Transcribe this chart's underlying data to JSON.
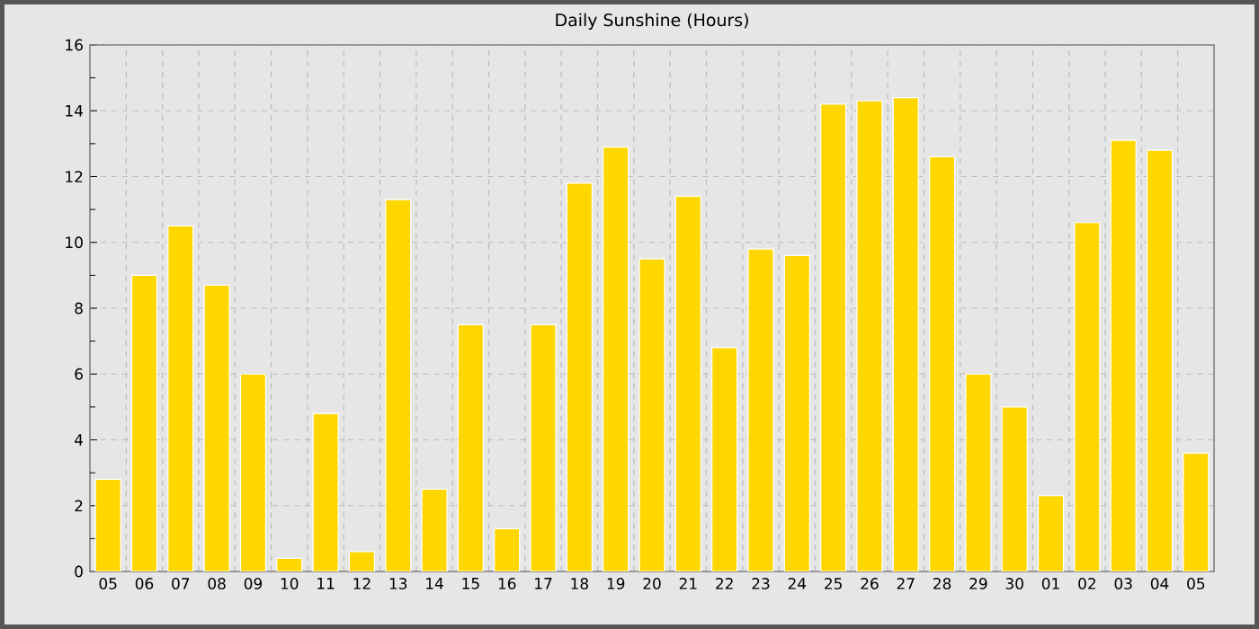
{
  "chart_data": {
    "type": "bar",
    "title": "Daily Sunshine (Hours)",
    "categories": [
      "05",
      "06",
      "07",
      "08",
      "09",
      "10",
      "11",
      "12",
      "13",
      "14",
      "15",
      "16",
      "17",
      "18",
      "19",
      "20",
      "21",
      "22",
      "23",
      "24",
      "25",
      "26",
      "27",
      "28",
      "29",
      "30",
      "01",
      "02",
      "03",
      "04",
      "05"
    ],
    "values": [
      2.8,
      9.0,
      10.5,
      8.7,
      6.0,
      0.4,
      4.8,
      0.6,
      11.3,
      2.5,
      7.5,
      1.3,
      7.5,
      11.8,
      12.9,
      9.5,
      11.4,
      6.8,
      9.8,
      9.6,
      14.2,
      14.3,
      14.4,
      12.6,
      6.0,
      5.0,
      2.3,
      10.6,
      13.1,
      12.8,
      3.6
    ],
    "color": "#ffd700",
    "ylim": [
      0,
      16
    ],
    "yticks": [
      0,
      {
        "value": 1,
        "label": null
      },
      2,
      {
        "value": 3,
        "label": null
      },
      4,
      {
        "value": 5,
        "label": null
      },
      6,
      {
        "value": 7,
        "label": null
      },
      8,
      {
        "value": 9,
        "label": null
      },
      10,
      {
        "value": 11,
        "label": null
      },
      12,
      {
        "value": 13,
        "label": null
      },
      14,
      {
        "value": 15,
        "label": null
      },
      16
    ],
    "grid": true
  }
}
